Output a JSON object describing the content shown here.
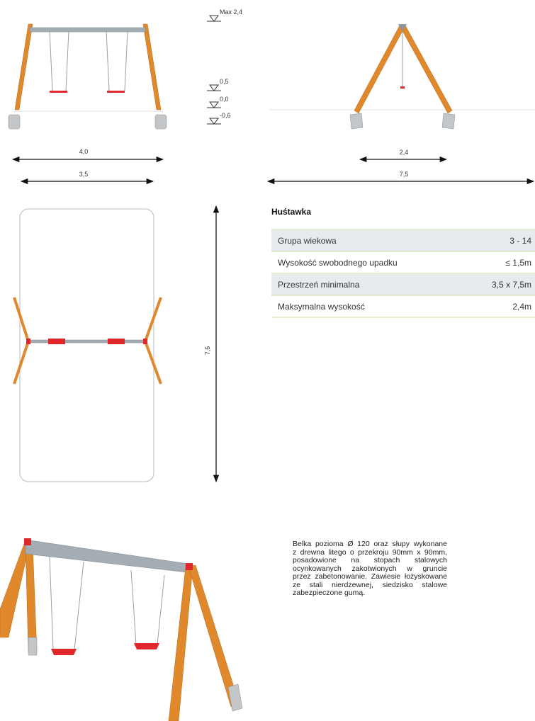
{
  "front_view": {
    "height_marks": [
      "Max 2,4",
      "0,5",
      "0,0",
      "-0,6"
    ],
    "dimensions": [
      "4,0",
      "3,5"
    ]
  },
  "side_view": {
    "dimensions": [
      "2,4",
      "7,5"
    ]
  },
  "plan_view": {
    "dimensions": [
      "7,5"
    ]
  },
  "specs": {
    "title": "Huśtawka",
    "rows": [
      [
        "Grupa wiekowa",
        "3 - 14"
      ],
      [
        "Wysokość swobodnego upadku",
        "≤ 1,5m"
      ],
      [
        "Przestrzeń minimalna",
        "3,5 x 7,5m"
      ],
      [
        "Maksymalna wysokość",
        "2,4m"
      ]
    ]
  },
  "description": {
    "lines": [
      "Belka pozioma Ø 120 oraz słupy wykonane",
      "z drewna litego o przekroju 90mm x 90mm,",
      "posadowione na stopach stalowych",
      "ocynkowanych zakotwionych w gruncie",
      "przez zabetonowanie. Zawiesie łożyskowane",
      "ze stali nierdzewnej, siedzisko stalowe",
      "zabezpieczone gumą."
    ]
  }
}
